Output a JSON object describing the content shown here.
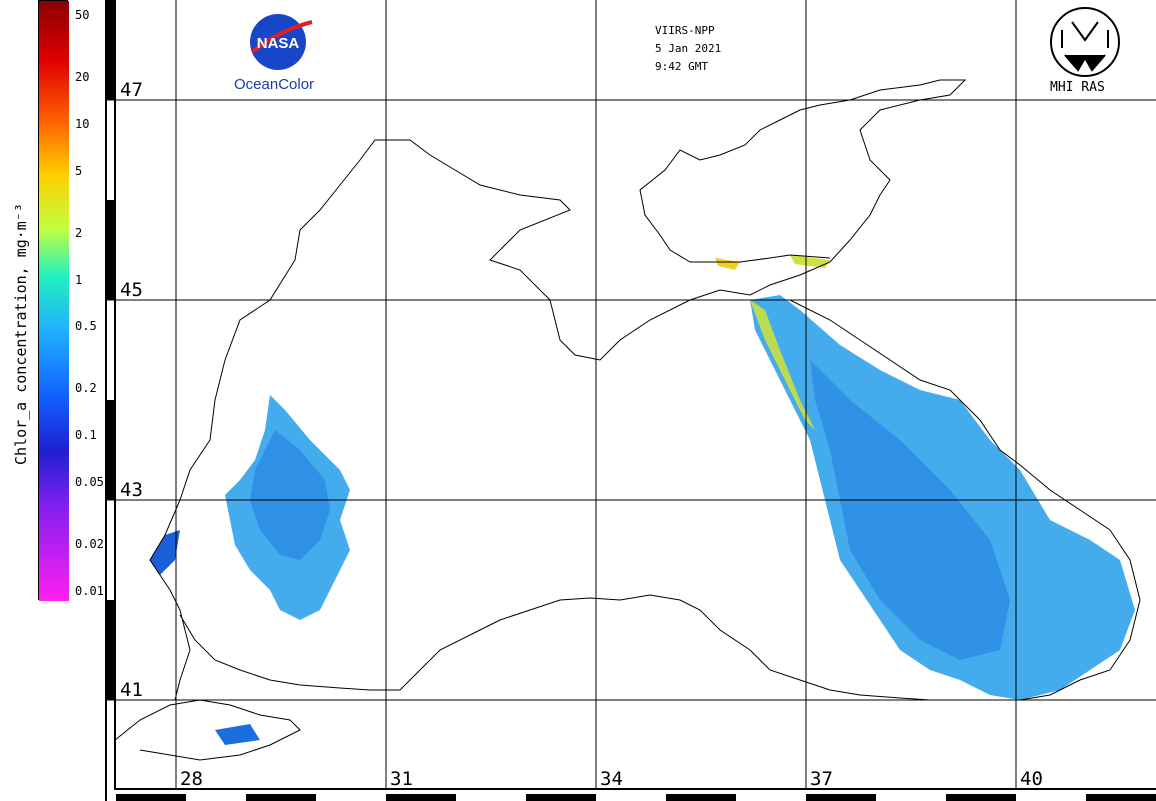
{
  "colorbar": {
    "title": "Chlor_a concentration, mg·m⁻³",
    "ticks": [
      "50",
      "20",
      "10",
      "5",
      "2",
      "1",
      "0.5",
      "0.2",
      "0.1",
      "0.05",
      "0.02",
      "0.01"
    ],
    "scale": "log"
  },
  "meta": {
    "sensor": "VIIRS-NPP",
    "date": "5 Jan 2021",
    "time": "9:42 GMT"
  },
  "logos": {
    "nasa_label": "NASA",
    "oceancolor_label": "OceanColor",
    "mhi_label": "MHI RAS"
  },
  "grid": {
    "lat_labels": [
      "47",
      "45",
      "43",
      "41"
    ],
    "lon_labels": [
      "28",
      "31",
      "34",
      "37",
      "40"
    ]
  },
  "colors": {
    "water_bg": "#ffffff",
    "coast": "#000000",
    "chl_low": "#1e6fe0",
    "chl_mid": "#33b8f0",
    "chl_high": "#f0d020"
  }
}
